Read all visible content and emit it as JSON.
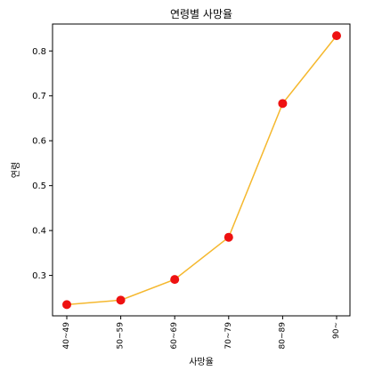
{
  "chart_data": {
    "type": "line",
    "title": "연령별 사망율",
    "xlabel": "사망율",
    "ylabel": "연령",
    "categories": [
      "40~49",
      "50~59",
      "60~69",
      "70~79",
      "80~89",
      "90~"
    ],
    "series": [
      {
        "values": [
          0.235,
          0.245,
          0.291,
          0.385,
          0.683,
          0.834
        ]
      }
    ],
    "ylim": [
      0.21,
      0.86
    ],
    "yticks": [
      0.3,
      0.4,
      0.5,
      0.6,
      0.7,
      0.8
    ],
    "ytick_labels": [
      "0.3",
      "0.4",
      "0.5",
      "0.6",
      "0.7",
      "0.8"
    ],
    "grid": false,
    "colors": {
      "line": "#f5b82e",
      "marker": "#ee1111"
    }
  }
}
